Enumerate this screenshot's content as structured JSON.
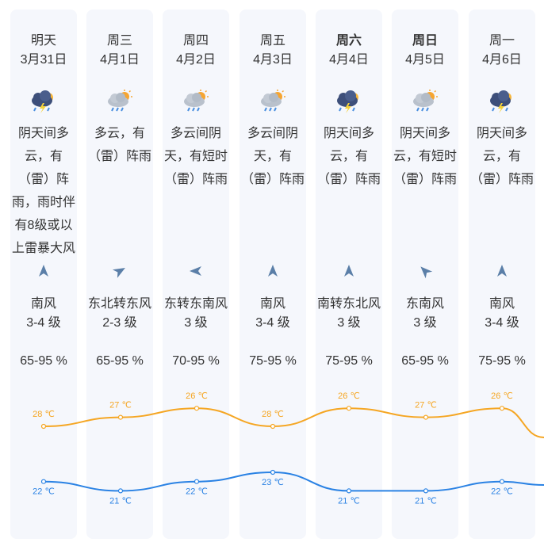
{
  "days": [
    {
      "day": "明天",
      "date": "3月31日",
      "bold": false,
      "icon": "thunderstorm-icon",
      "desc": "阴天间多云，有（雷）阵雨，雨时伴有8级或以上雷暴大风",
      "wind_dir": "南风",
      "wind_level": "3-4 级",
      "wind_arrow": "arrow-north-icon",
      "wind_angle": 0,
      "humidity": "65-95 %",
      "high": "28 ℃",
      "low": "22 ℃"
    },
    {
      "day": "周三",
      "date": "4月1日",
      "bold": false,
      "icon": "cloudy-sun-rain-icon",
      "desc": "多云，有（雷）阵雨",
      "wind_dir": "东北转东风",
      "wind_level": "2-3 级",
      "wind_arrow": "arrow-northeast-icon",
      "wind_angle": 60,
      "humidity": "65-95 %",
      "high": "27 ℃",
      "low": "21 ℃"
    },
    {
      "day": "周四",
      "date": "4月2日",
      "bold": false,
      "icon": "cloudy-sun-rain-icon",
      "desc": "多云间阴天，有短时（雷）阵雨",
      "wind_dir": "东转东南风",
      "wind_level": "3 级",
      "wind_arrow": "arrow-west-icon",
      "wind_angle": -90,
      "humidity": "70-95 %",
      "high": "26 ℃",
      "low": "22 ℃"
    },
    {
      "day": "周五",
      "date": "4月3日",
      "bold": false,
      "icon": "cloudy-sun-rain-icon",
      "desc": "多云间阴天，有（雷）阵雨",
      "wind_dir": "南风",
      "wind_level": "3-4 级",
      "wind_arrow": "arrow-north-icon",
      "wind_angle": 0,
      "humidity": "75-95 %",
      "high": "28 ℃",
      "low": "23 ℃"
    },
    {
      "day": "周六",
      "date": "4月4日",
      "bold": true,
      "icon": "thunderstorm-icon",
      "desc": "阴天间多云，有（雷）阵雨",
      "wind_dir": "南转东北风",
      "wind_level": "3 级",
      "wind_arrow": "arrow-north-icon",
      "wind_angle": 0,
      "humidity": "75-95 %",
      "high": "26 ℃",
      "low": "21 ℃"
    },
    {
      "day": "周日",
      "date": "4月5日",
      "bold": true,
      "icon": "cloudy-sun-rain-icon",
      "desc": "阴天间多云，有短时（雷）阵雨",
      "wind_dir": "东南风",
      "wind_level": "3 级",
      "wind_arrow": "arrow-northwest-icon",
      "wind_angle": -45,
      "humidity": "65-95 %",
      "high": "27 ℃",
      "low": "21 ℃"
    },
    {
      "day": "周一",
      "date": "4月6日",
      "bold": false,
      "icon": "thunderstorm-icon",
      "desc": "阴天间多云，有（雷）阵雨",
      "wind_dir": "南风",
      "wind_level": "3-4 级",
      "wind_arrow": "arrow-north-icon",
      "wind_angle": 0,
      "humidity": "75-95 %",
      "high": "26 ℃",
      "low": "22 ℃"
    }
  ],
  "chart_data": {
    "type": "line",
    "x": [
      "3月31日",
      "4月1日",
      "4月2日",
      "4月3日",
      "4月4日",
      "4月5日",
      "4月6日"
    ],
    "series": [
      {
        "values": [
          28,
          27,
          26,
          28,
          26,
          27,
          26
        ],
        "color": "#f5a623"
      },
      {
        "values": [
          22,
          21,
          22,
          23,
          21,
          21,
          22
        ],
        "color": "#2a82e4"
      }
    ]
  },
  "colors": {
    "card_bg": "#f5f7fc",
    "text": "#333333",
    "arrow": "#5b7fa8",
    "high_line": "#f5a623",
    "low_line": "#2a82e4"
  }
}
